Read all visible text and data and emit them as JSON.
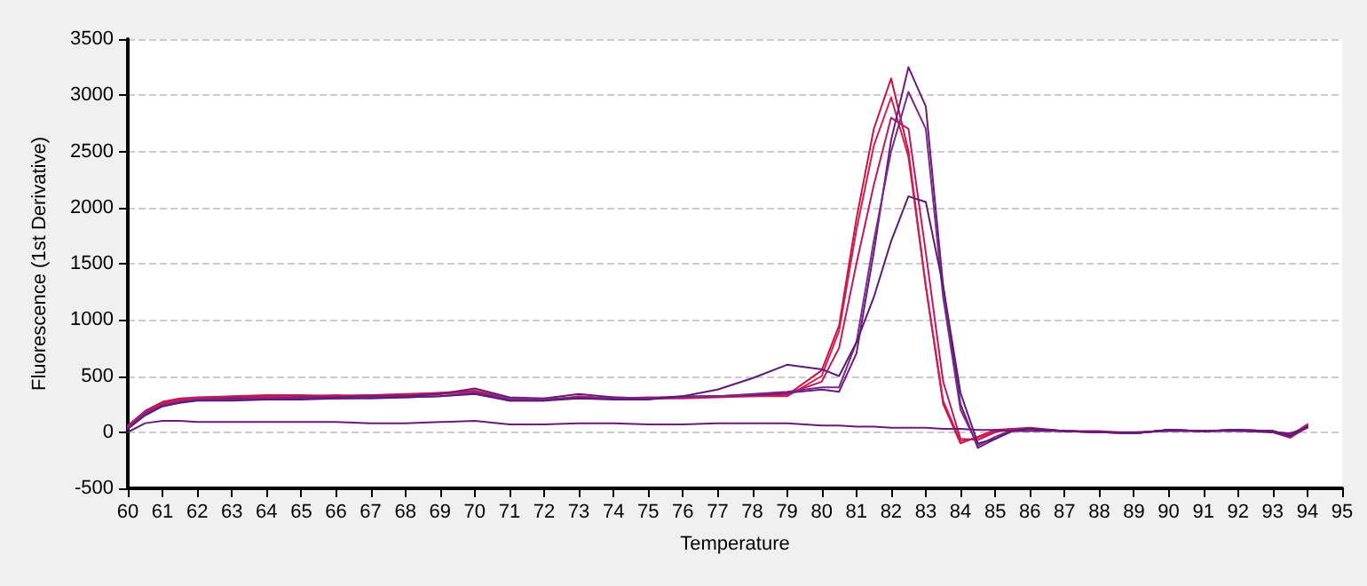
{
  "chart_data": {
    "type": "line",
    "xlabel": "Temperature",
    "ylabel": "Fluorescence (1st Derivative)",
    "x": [
      60,
      60.5,
      61,
      61.5,
      62,
      63,
      64,
      65,
      66,
      67,
      68,
      69,
      70,
      71,
      72,
      73,
      74,
      75,
      76,
      77,
      78,
      79,
      80,
      80.5,
      81,
      81.5,
      82,
      82.5,
      83,
      83.5,
      84,
      84.5,
      85,
      85.5,
      86,
      87,
      88,
      89,
      90,
      91,
      92,
      93,
      93.5,
      94
    ],
    "series": [
      {
        "color": "#cc1144",
        "values": [
          50,
          180,
          260,
          290,
          300,
          310,
          320,
          320,
          320,
          330,
          330,
          350,
          370,
          300,
          290,
          310,
          300,
          300,
          310,
          320,
          320,
          330,
          550,
          950,
          1900,
          2700,
          3150,
          2500,
          1300,
          250,
          -100,
          -40,
          20,
          30,
          40,
          10,
          0,
          -10,
          20,
          10,
          20,
          10,
          -40,
          60
        ]
      },
      {
        "color": "#d41e4e",
        "values": [
          40,
          170,
          250,
          280,
          300,
          300,
          310,
          320,
          330,
          320,
          330,
          340,
          360,
          290,
          300,
          300,
          310,
          300,
          300,
          310,
          320,
          320,
          500,
          900,
          1800,
          2550,
          2980,
          2450,
          1300,
          280,
          -80,
          -50,
          10,
          30,
          30,
          10,
          0,
          -10,
          20,
          10,
          20,
          0,
          -50,
          50
        ]
      },
      {
        "color": "#c2185b",
        "values": [
          60,
          190,
          270,
          300,
          310,
          320,
          330,
          330,
          320,
          330,
          340,
          350,
          360,
          280,
          280,
          320,
          300,
          310,
          310,
          320,
          330,
          340,
          450,
          750,
          1500,
          2200,
          2800,
          2700,
          1600,
          450,
          -60,
          -70,
          0,
          30,
          30,
          10,
          10,
          -10,
          20,
          10,
          20,
          10,
          -30,
          70
        ]
      },
      {
        "color": "#6a1b7a",
        "values": [
          30,
          160,
          240,
          270,
          290,
          300,
          300,
          310,
          310,
          320,
          320,
          340,
          390,
          310,
          300,
          340,
          310,
          300,
          320,
          320,
          330,
          350,
          380,
          360,
          700,
          1600,
          2600,
          3250,
          2900,
          1300,
          250,
          -140,
          -60,
          20,
          30,
          10,
          0,
          -10,
          20,
          10,
          20,
          0,
          -40,
          40
        ]
      },
      {
        "color": "#7b2a8c",
        "values": [
          40,
          170,
          240,
          270,
          290,
          290,
          300,
          300,
          300,
          310,
          310,
          320,
          350,
          300,
          290,
          310,
          300,
          300,
          310,
          320,
          340,
          360,
          400,
          400,
          800,
          1700,
          2500,
          3030,
          2700,
          1200,
          200,
          -120,
          -40,
          20,
          30,
          10,
          0,
          -10,
          20,
          10,
          20,
          10,
          -30,
          50
        ]
      },
      {
        "color": "#5c1a78",
        "values": [
          30,
          150,
          230,
          260,
          280,
          280,
          290,
          290,
          300,
          300,
          310,
          320,
          340,
          280,
          280,
          300,
          290,
          290,
          320,
          380,
          480,
          600,
          560,
          500,
          800,
          1200,
          1700,
          2100,
          2050,
          1300,
          350,
          -100,
          -60,
          10,
          30,
          10,
          0,
          -10,
          20,
          10,
          20,
          10,
          -30,
          50
        ]
      },
      {
        "color": "#6a1b7a",
        "values": [
          0,
          80,
          100,
          100,
          90,
          90,
          90,
          90,
          90,
          80,
          80,
          90,
          100,
          70,
          70,
          80,
          80,
          70,
          70,
          80,
          80,
          80,
          60,
          60,
          50,
          50,
          40,
          40,
          40,
          30,
          30,
          20,
          20,
          10,
          10,
          10,
          0,
          0,
          10,
          10,
          10,
          0,
          -10,
          40
        ]
      }
    ],
    "xlim": [
      60,
      95
    ],
    "xticks": [
      60,
      61,
      62,
      63,
      64,
      65,
      66,
      67,
      68,
      69,
      70,
      71,
      72,
      73,
      74,
      75,
      76,
      77,
      78,
      79,
      80,
      81,
      82,
      83,
      84,
      85,
      86,
      87,
      88,
      89,
      90,
      91,
      92,
      93,
      94,
      95
    ],
    "ylim": [
      -500,
      3500
    ],
    "yticks": [
      -500,
      0,
      500,
      1000,
      1500,
      2000,
      2500,
      3000,
      3500
    ],
    "grid": "y",
    "marker": "none",
    "line_style": "solid"
  }
}
